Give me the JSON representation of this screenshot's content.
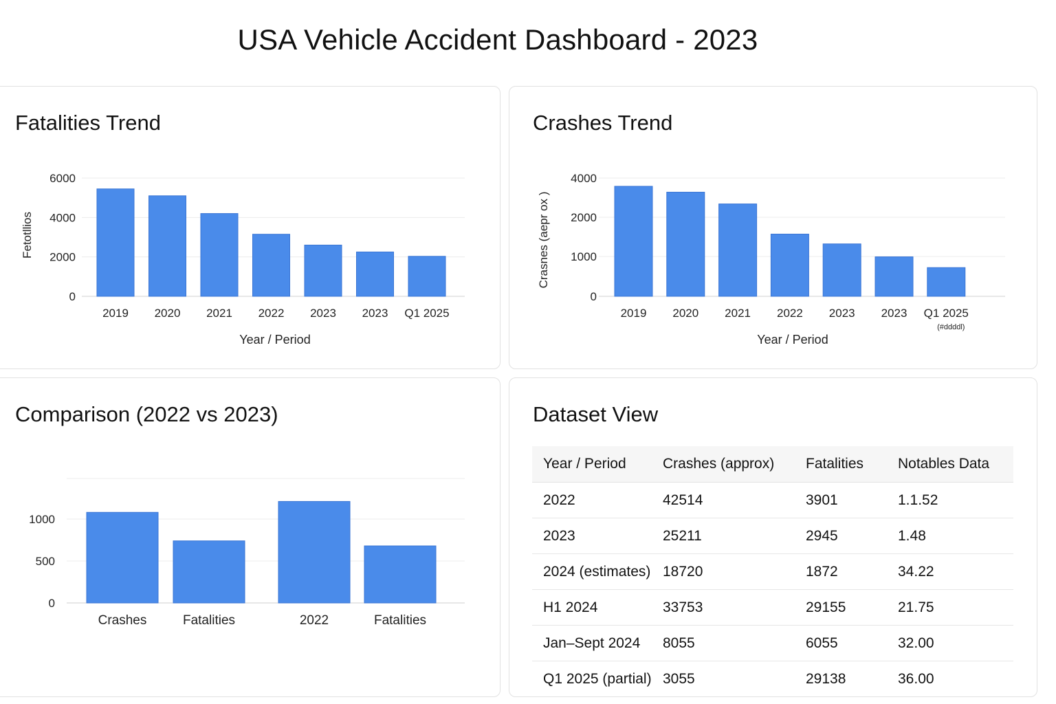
{
  "dashboard": {
    "title": "USA Vehicle Accident Dashboard - 2023",
    "accent_color": "#4a8bea"
  },
  "panels": {
    "fatalities_trend": {
      "title": "Fatalities Trend"
    },
    "crashes_trend": {
      "title": "Crashes Trend"
    },
    "comparison": {
      "title": "Comparison (2022 vs 2023)"
    },
    "dataset": {
      "title": "Dataset View"
    }
  },
  "chart_data": [
    {
      "id": "fatalities",
      "type": "bar",
      "categories": [
        "2019",
        "2020",
        "2021",
        "2022",
        "2023",
        "2023",
        "Q1 2025"
      ],
      "values": [
        5450,
        5100,
        4200,
        3150,
        2600,
        2250,
        2030
      ],
      "xlabel": "Year / Period",
      "ylabel": "Fetotllios",
      "yticks": [
        0,
        2000,
        4000,
        6000
      ],
      "ylim": [
        0,
        6000
      ],
      "grid": true
    },
    {
      "id": "crashes",
      "type": "bar",
      "categories": [
        "2019",
        "2020",
        "2021",
        "2022",
        "2023",
        "2023",
        "Q1 2025"
      ],
      "category_sublabel": "(#ddddl)",
      "values": [
        3580,
        3280,
        2680,
        1570,
        1320,
        990,
        720
      ],
      "xlabel": "Year / Period",
      "ylabel": "Crasnes (aepr ox )",
      "yticks": [
        "0",
        "1000",
        "2000",
        "4000"
      ],
      "ylim": [
        0,
        4000
      ],
      "grid": true
    },
    {
      "id": "comparison",
      "type": "bar",
      "categories": [
        "Crashes",
        "Fatalities",
        "2022",
        "Fatalities"
      ],
      "values": [
        1080,
        740,
        1210,
        680
      ],
      "yticks": [
        0,
        500,
        1000
      ],
      "ylim": [
        0,
        1000
      ],
      "grid": true
    }
  ],
  "table": {
    "columns": [
      "Year / Period",
      "Crashes (approx)",
      "Fatalities",
      "Notables Data"
    ],
    "rows": [
      [
        "2022",
        "42514",
        "3901",
        "1.1.52"
      ],
      [
        "2023",
        "25211",
        "2945",
        "1.48"
      ],
      [
        "2024 (estimates)",
        "18720",
        "1872",
        "34.22"
      ],
      [
        "H1 2024",
        "33753",
        "29155",
        "21.75"
      ],
      [
        "Jan–Sept 2024",
        "8055",
        "6055",
        "32.00"
      ],
      [
        "Q1 2025 (partial)",
        "3055",
        "29138",
        "36.00"
      ]
    ]
  }
}
